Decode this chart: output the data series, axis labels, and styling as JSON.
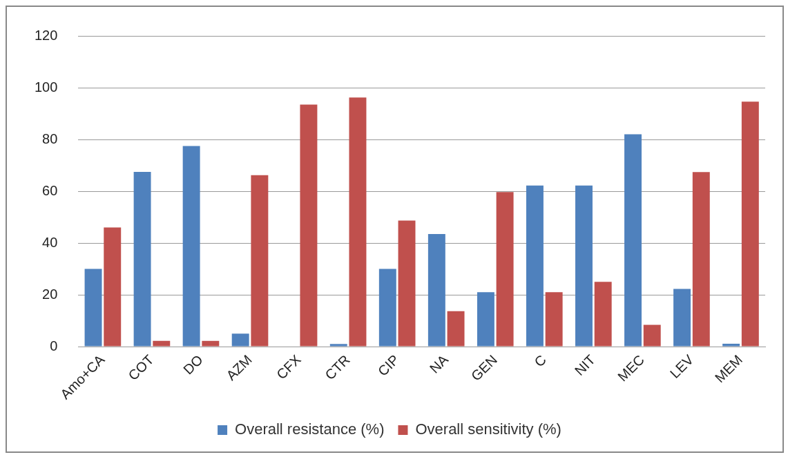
{
  "chart_data": {
    "type": "bar",
    "categories": [
      "Amo+CA",
      "COT",
      "DO",
      "AZM",
      "CFX",
      "CTR",
      "CIP",
      "NA",
      "GEN",
      "C",
      "NIT",
      "MEC",
      "LEV",
      "MEM"
    ],
    "series": [
      {
        "name": "Overall resistance (%)",
        "color": "#4f81bd",
        "values": [
          30,
          67.5,
          77.5,
          5,
          0,
          1,
          30,
          43.5,
          21,
          62.2,
          62.2,
          82,
          22.3,
          1.1
        ]
      },
      {
        "name": "Overall sensitivity (%)",
        "color": "#c0504d",
        "values": [
          46,
          2.2,
          2.2,
          66.2,
          93.5,
          96.2,
          48.7,
          13.7,
          59.7,
          21,
          25,
          8.4,
          67.4,
          94.6
        ]
      }
    ],
    "ylim": [
      0,
      120
    ],
    "yticks": [
      0,
      20,
      40,
      60,
      80,
      100,
      120
    ],
    "grid": "y",
    "legend": "bottom"
  }
}
